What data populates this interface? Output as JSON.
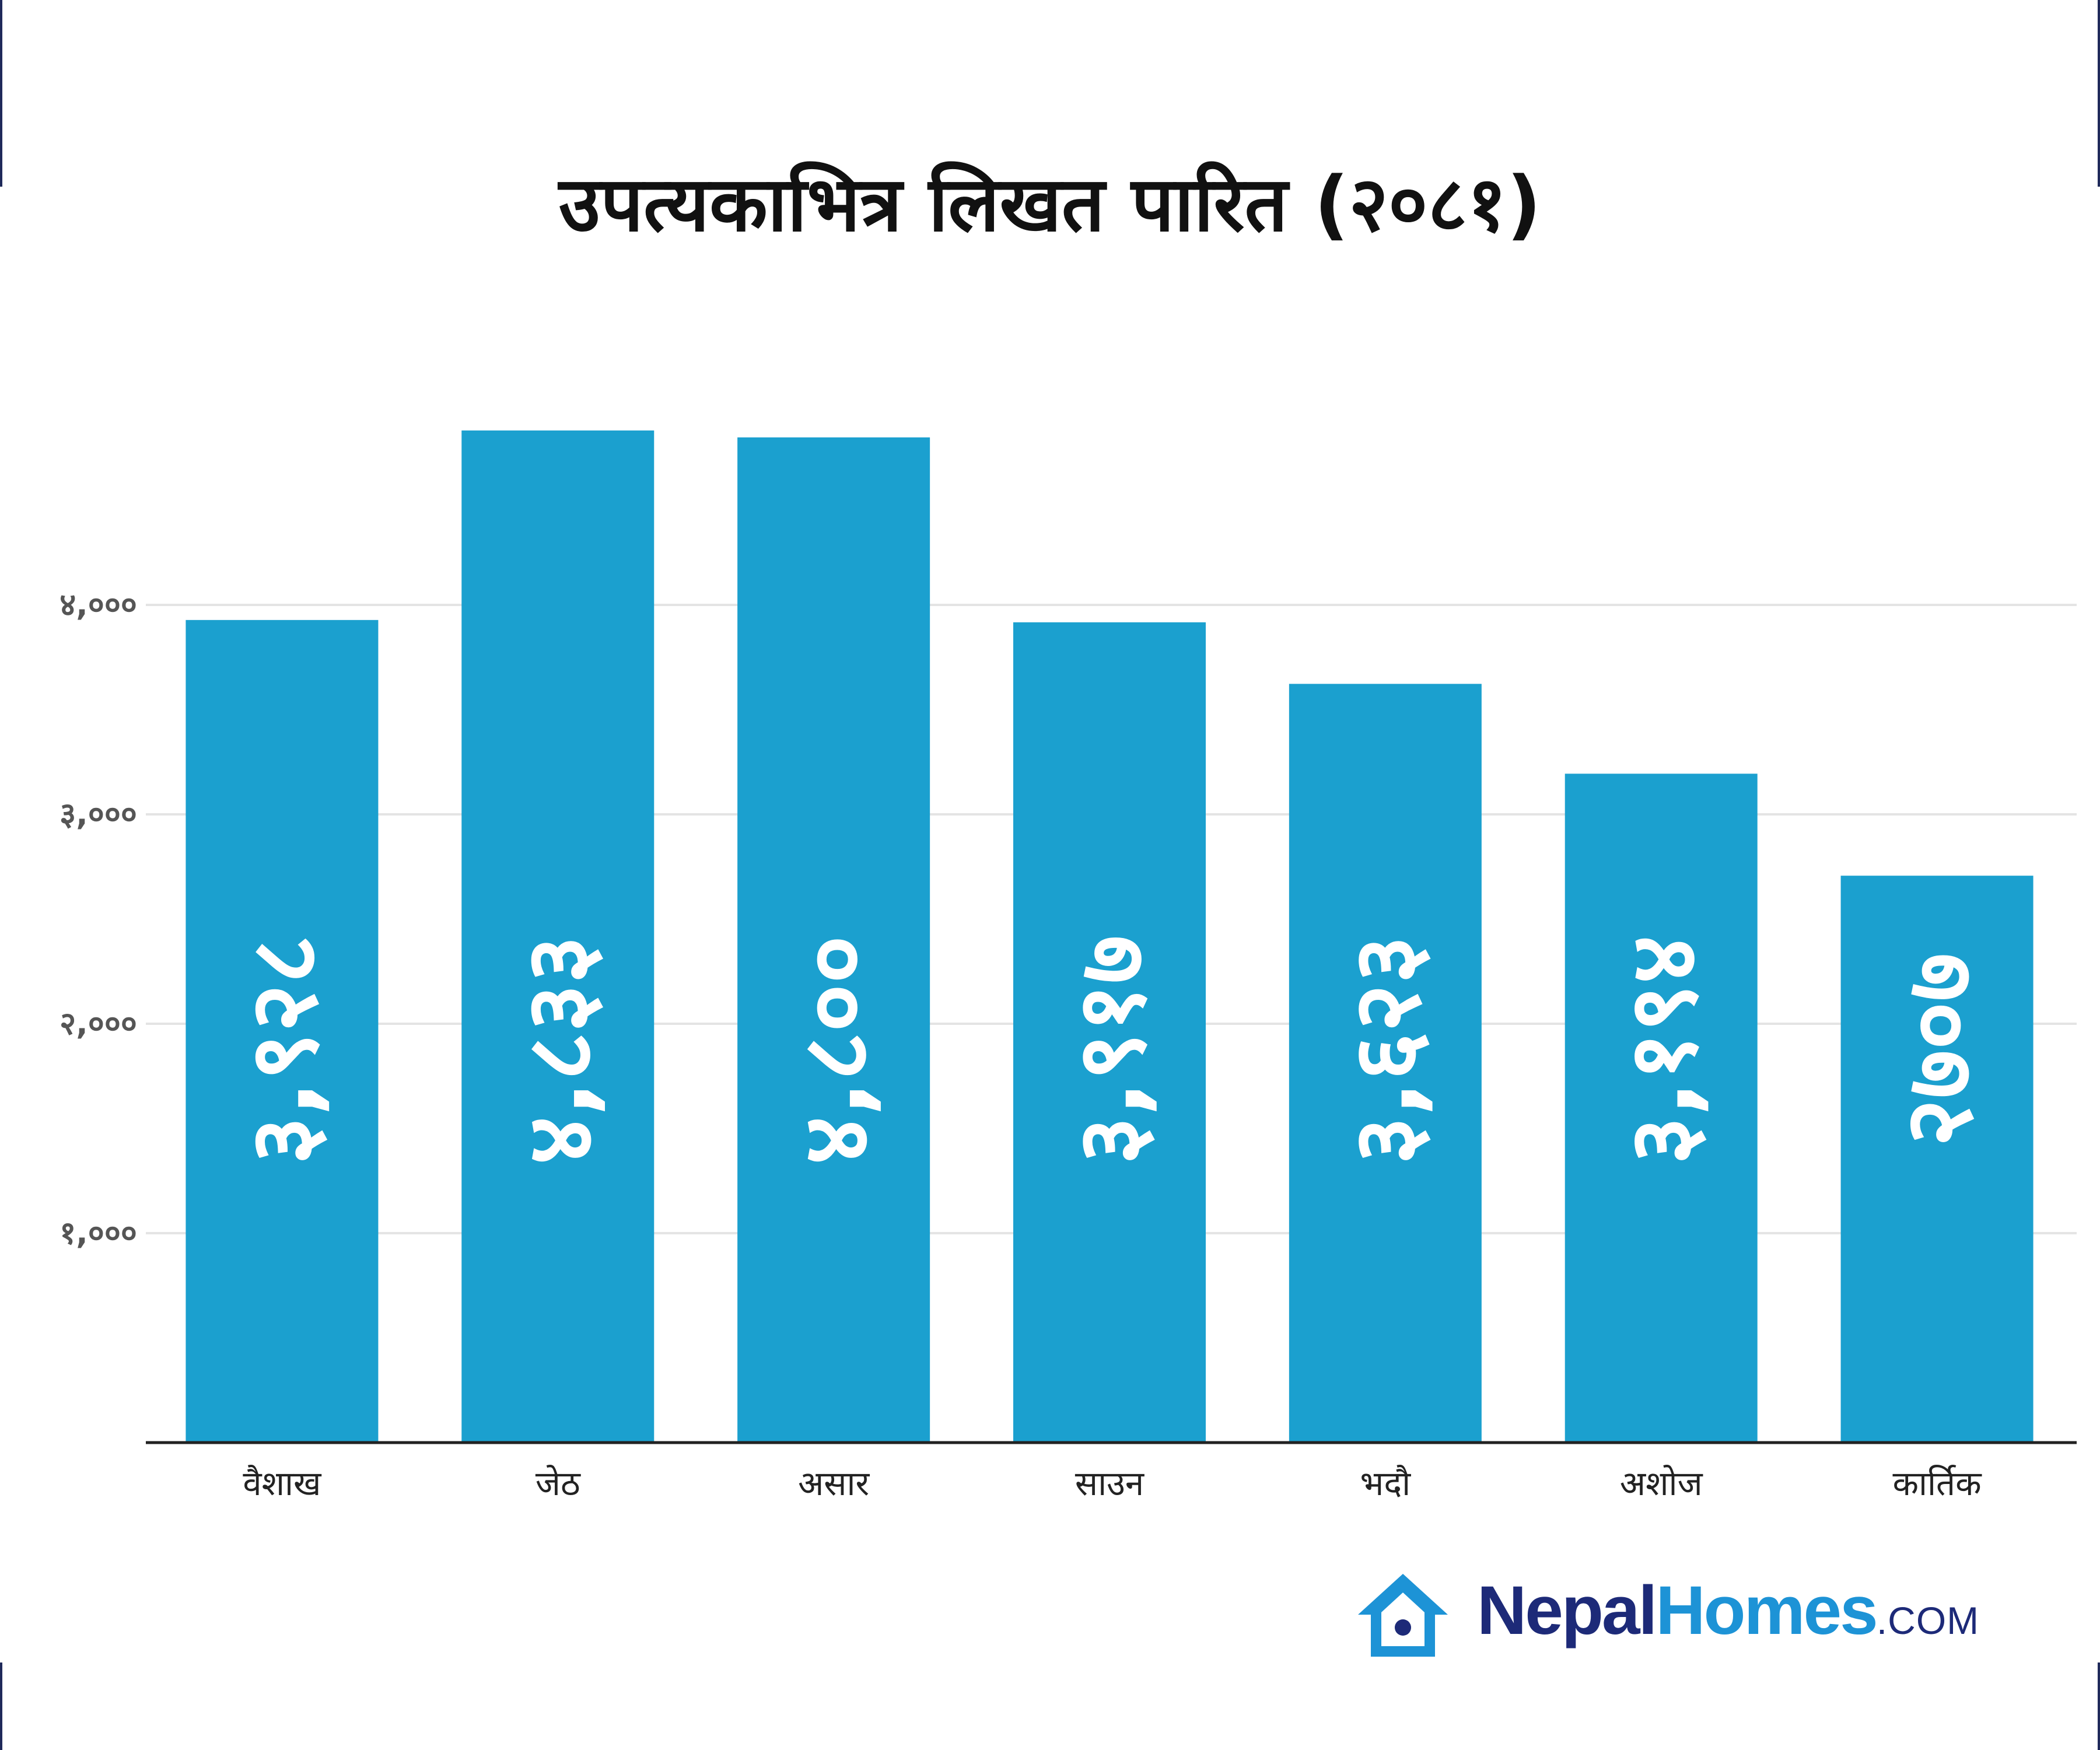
{
  "colors": {
    "bar": "#1ba0cf",
    "grid": "#e4e4e4",
    "axis": "#222222",
    "frame": "#1f2a5a",
    "logo_dark": "#1d2a78",
    "logo_light": "#1d93d6"
  },
  "logo": {
    "part1": "Nepal",
    "part2": "Homes",
    "part3": ".COM",
    "icon": "house-icon"
  },
  "chart_data": {
    "type": "bar",
    "title": "उपत्यकाभित्र लिखत पारित (२०८१)",
    "xlabel": "",
    "ylabel": "",
    "categories": [
      "वैशाख",
      "जेठ",
      "असार",
      "साउन",
      "भदौ",
      "अशोज",
      "कार्तिक"
    ],
    "values": [
      3928,
      4833,
      4800,
      3917,
      3623,
      3194,
      2707
    ],
    "value_labels": [
      "३,९२८",
      "४,८३३",
      "४,८००",
      "३,९१७",
      "३,६२३",
      "३,१९४",
      "२७०७"
    ],
    "yticks": [
      1000,
      2000,
      3000,
      4000
    ],
    "ytick_labels": [
      "१,०००",
      "२,०००",
      "३,०००",
      "४,०००"
    ],
    "ylim": [
      0,
      5000
    ],
    "grid": true,
    "legend": "none"
  }
}
